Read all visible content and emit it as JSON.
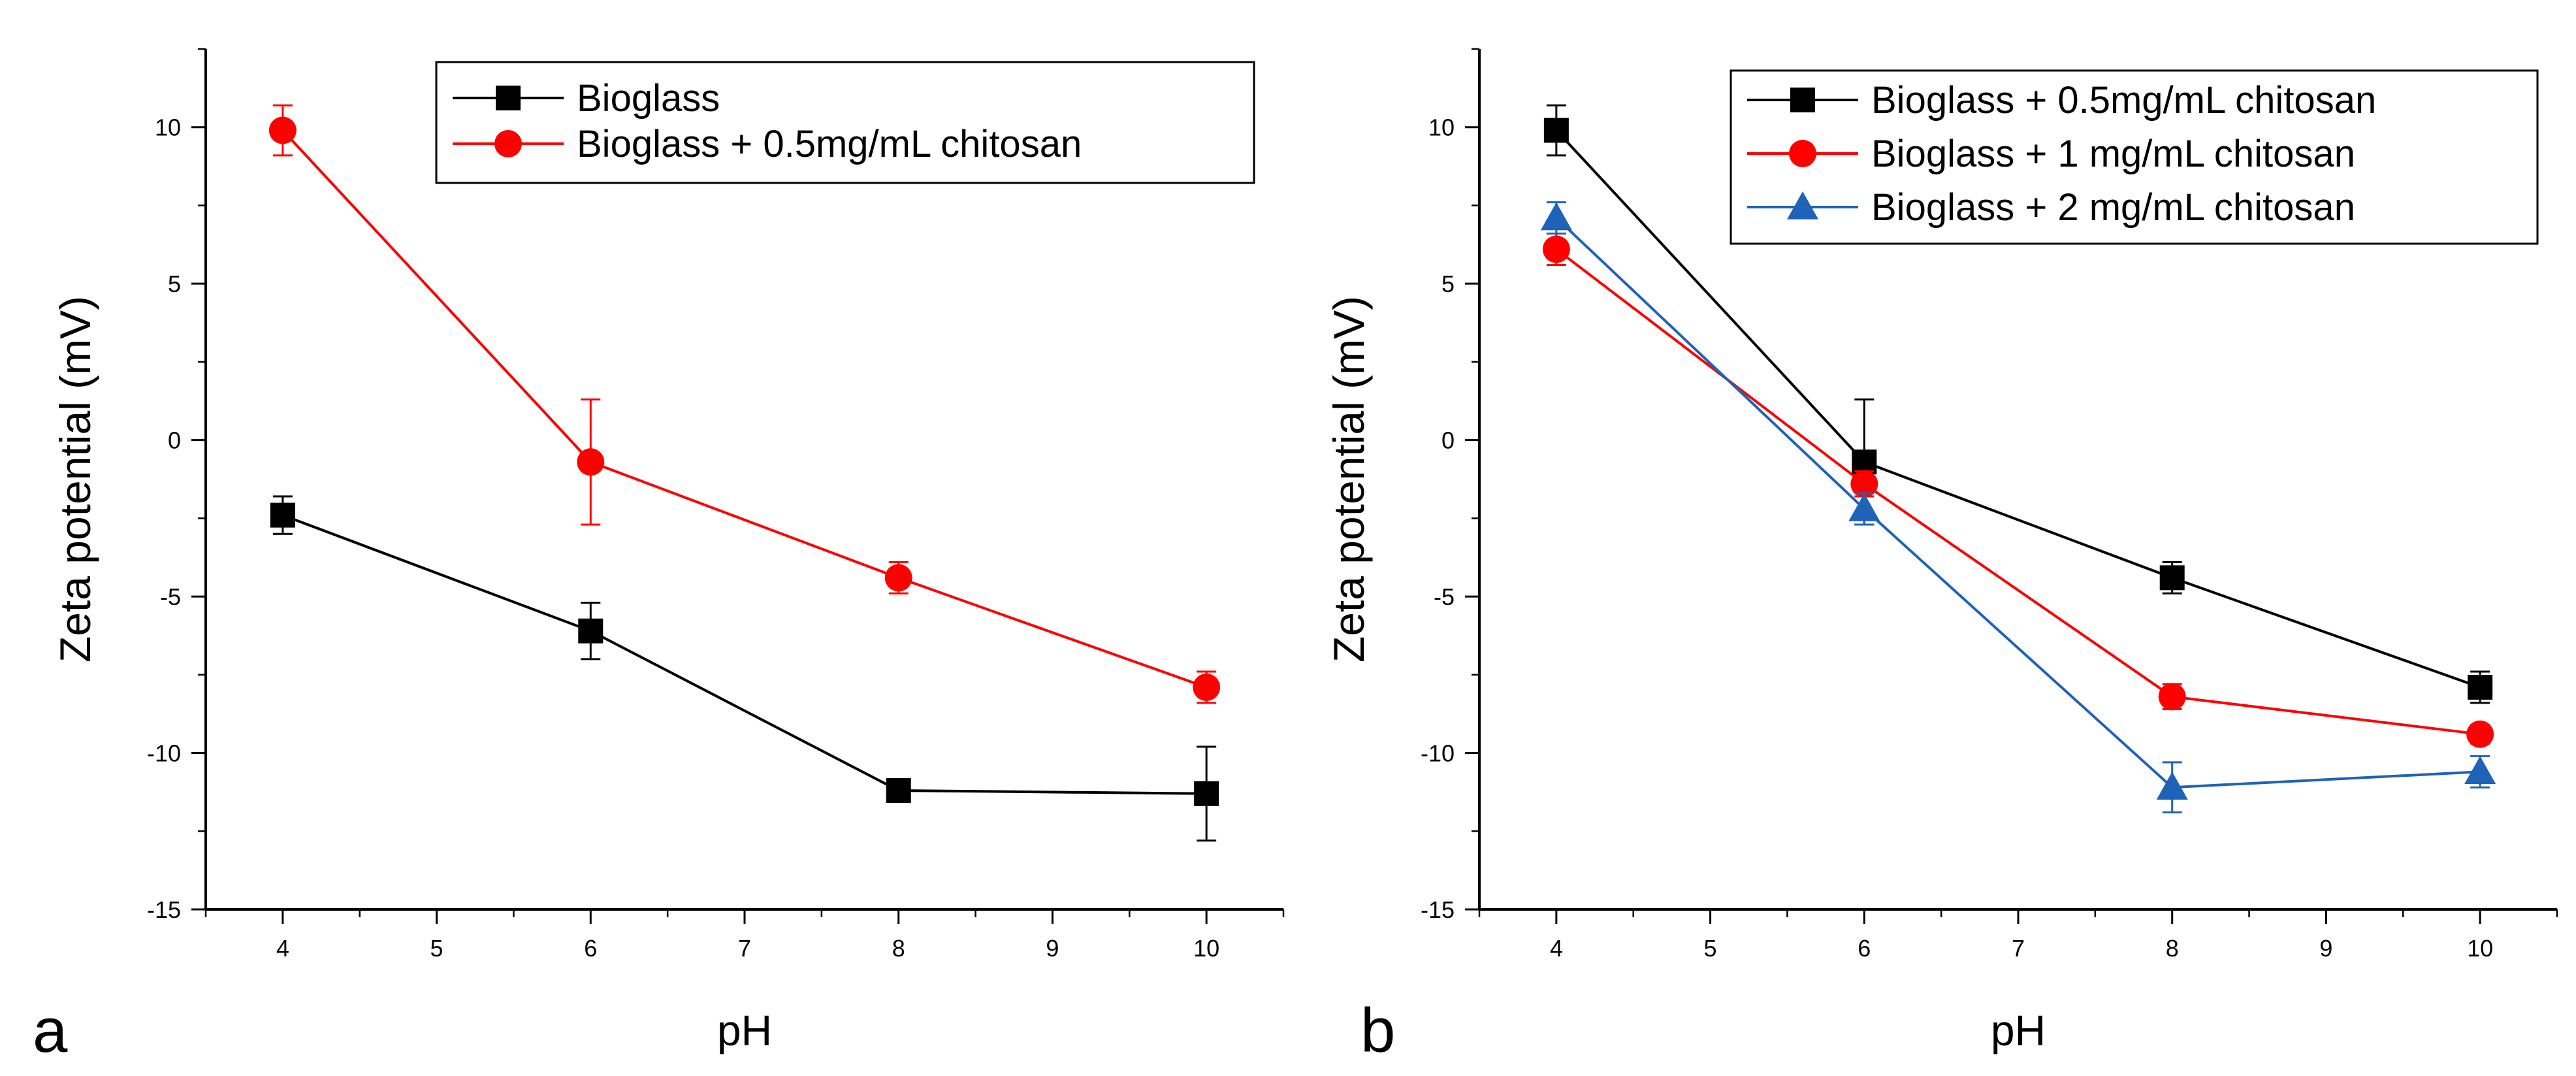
{
  "chart_data": [
    {
      "type": "line",
      "panel_label": "a",
      "xlabel": "pH",
      "ylabel": "Zeta potential (mV)",
      "xlim": [
        3.5,
        10.5
      ],
      "ylim": [
        -15,
        12.5
      ],
      "xticks": [
        4,
        5,
        6,
        7,
        8,
        9,
        10
      ],
      "yticks": [
        -15,
        -10,
        -5,
        0,
        5,
        10
      ],
      "legend_position": "top-right",
      "series": [
        {
          "name": "Bioglass",
          "color": "#000000",
          "marker": "square",
          "x": [
            4,
            6,
            8,
            10
          ],
          "y": [
            -2.4,
            -6.1,
            -11.2,
            -11.3
          ],
          "error": [
            0.6,
            0.9,
            0.2,
            1.5
          ]
        },
        {
          "name": "Bioglass + 0.5mg/mL chitosan",
          "color": "#ff0000",
          "marker": "circle",
          "x": [
            4,
            6,
            8,
            10
          ],
          "y": [
            9.9,
            -0.7,
            -4.4,
            -7.9
          ],
          "error": [
            0.8,
            2.0,
            0.5,
            0.5
          ]
        }
      ]
    },
    {
      "type": "line",
      "panel_label": "b",
      "xlabel": "pH",
      "ylabel": "Zeta potential (mV)",
      "xlim": [
        3.5,
        10.5
      ],
      "ylim": [
        -15,
        12.5
      ],
      "xticks": [
        4,
        5,
        6,
        7,
        8,
        9,
        10
      ],
      "yticks": [
        -15,
        -10,
        -5,
        0,
        5,
        10
      ],
      "legend_position": "top-right",
      "series": [
        {
          "name": "Bioglass + 0.5mg/mL chitosan",
          "color": "#000000",
          "marker": "square",
          "x": [
            4,
            6,
            8,
            10
          ],
          "y": [
            9.9,
            -0.7,
            -4.4,
            -7.9
          ],
          "error": [
            0.8,
            2.0,
            0.5,
            0.5
          ]
        },
        {
          "name": "Bioglass + 1 mg/mL chitosan",
          "color": "#ff0000",
          "marker": "circle",
          "x": [
            4,
            6,
            8,
            10
          ],
          "y": [
            6.1,
            -1.4,
            -8.2,
            -9.4
          ],
          "error": [
            0.5,
            0.4,
            0.4,
            0.3
          ]
        },
        {
          "name": "Bioglass + 2 mg/mL chitosan",
          "color": "#1f63b8",
          "marker": "triangle",
          "x": [
            4,
            6,
            8,
            10
          ],
          "y": [
            7.1,
            -2.2,
            -11.1,
            -10.6
          ],
          "error": [
            0.5,
            0.5,
            0.8,
            0.5
          ]
        }
      ]
    }
  ]
}
